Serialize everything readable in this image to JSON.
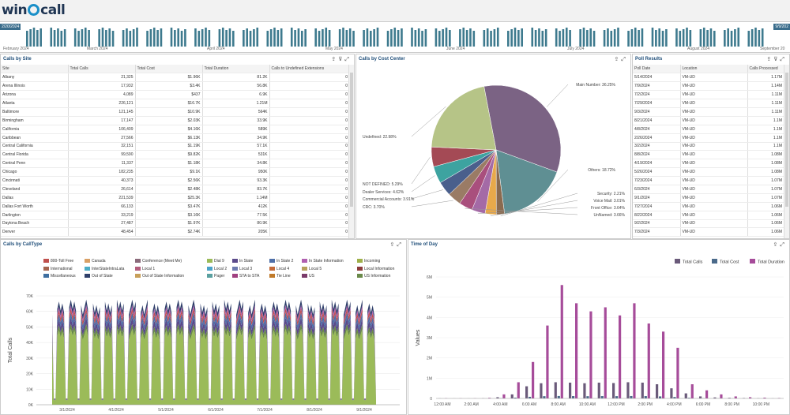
{
  "app": {
    "logo_text": "win",
    "logo_text2": "call"
  },
  "timeline": {
    "start_badge": "2/20/2024",
    "end_badge": "9/9/202",
    "months": [
      "February 2024",
      "March 2024",
      "April 2024",
      "May 2024",
      "June 2024",
      "July 2024",
      "August 2024",
      "September 20"
    ],
    "bar_color": "#3e7a8e"
  },
  "sites": {
    "title": "Calls by Site",
    "columns": [
      "Site",
      "Total Calls",
      "Total Cost",
      "Total Duration",
      "Calls to Undefined Extensions"
    ],
    "rows": [
      [
        "Albany",
        "21,325",
        "$1.96K",
        "81.2K",
        "0"
      ],
      [
        "Arena Illinois",
        "17,932",
        "$3.4K",
        "56.8K",
        "0"
      ],
      [
        "Arizona",
        "4,089",
        "$437",
        "6.9K",
        "0"
      ],
      [
        "Atlanta",
        "226,121",
        "$16.7K",
        "1.21M",
        "0"
      ],
      [
        "Baltimore",
        "121,145",
        "$10.9K",
        "564K",
        "0"
      ],
      [
        "Birmingham",
        "17,147",
        "$2.03K",
        "33.9K",
        "0"
      ],
      [
        "California",
        "106,409",
        "$4.16K",
        "589K",
        "0"
      ],
      [
        "Caribbean",
        "27,566",
        "$6.13K",
        "34.9K",
        "0"
      ],
      [
        "Central California",
        "32,151",
        "$1.19K",
        "57.1K",
        "0"
      ],
      [
        "Central Florida",
        "99,590",
        "$9.82K",
        "531K",
        "0"
      ],
      [
        "Central Penn",
        "11,337",
        "$1.18K",
        "34.8K",
        "0"
      ],
      [
        "Chicago",
        "182,235",
        "$9.1K",
        "950K",
        "0"
      ],
      [
        "Cincinnati",
        "40,373",
        "$2.56K",
        "93.3K",
        "0"
      ],
      [
        "Cleveland",
        "26,614",
        "$2.48K",
        "83.7K",
        "0"
      ],
      [
        "Dallas",
        "221,539",
        "$25.3K",
        "1.14M",
        "0"
      ],
      [
        "Dallas Fort Worth",
        "66,133",
        "$3.47K",
        "412K",
        "0"
      ],
      [
        "Darlington",
        "33,219",
        "$3.16K",
        "77.5K",
        "0"
      ],
      [
        "Daytona Beach",
        "27,487",
        "$1.97K",
        "80.9K",
        "0"
      ],
      [
        "Denver",
        "48,454",
        "$2.74K",
        "205K",
        "0"
      ]
    ]
  },
  "cost_center": {
    "title": "Calls by Cost Center",
    "chart_data": {
      "type": "pie",
      "slices": [
        {
          "label": "Main Number: 36.25%",
          "value": 36.25,
          "color": "#7b6384"
        },
        {
          "label": "Others: 18.72%",
          "value": 18.72,
          "color": "#5f8f93"
        },
        {
          "label": "Security: 2.21%",
          "value": 2.21,
          "color": "#8a6a4f"
        },
        {
          "label": "Voice Mail: 3.01%",
          "value": 3.01,
          "color": "#e8a94b"
        },
        {
          "label": "Front Office: 3.64%",
          "value": 3.64,
          "color": "#a46aa6"
        },
        {
          "label": "UnNamed: 3.66%",
          "value": 3.66,
          "color": "#a94f7d"
        },
        {
          "label": "CRC: 3.70%",
          "value": 3.7,
          "color": "#9a7b65"
        },
        {
          "label": "Commercial Accounts: 3.91%",
          "value": 3.91,
          "color": "#4a5f8c"
        },
        {
          "label": "Dealer Services: 4.62%",
          "value": 4.62,
          "color": "#3da3a0"
        },
        {
          "label": "NOT DEFINED: 5.29%",
          "value": 5.29,
          "color": "#a44a55"
        },
        {
          "label": "Undefined: 22.98%",
          "value": 22.98,
          "color": "#b6c487"
        }
      ]
    }
  },
  "poll": {
    "title": "Poll Results",
    "columns": [
      "Poll Date",
      "Location",
      "Calls Processed"
    ],
    "rows": [
      [
        "5/14/2024",
        "VM-UD",
        "1.17M"
      ],
      [
        "7/9/2024",
        "VM-UD",
        "1.14M"
      ],
      [
        "7/2/2024",
        "VM-UD",
        "1.11M"
      ],
      [
        "7/29/2024",
        "VM-UD",
        "1.11M"
      ],
      [
        "9/3/2024",
        "VM-UD",
        "1.11M"
      ],
      [
        "8/21/2024",
        "VM-UD",
        "1.1M"
      ],
      [
        "4/8/2024",
        "VM-UD",
        "1.1M"
      ],
      [
        "2/26/2024",
        "VM-UD",
        "1.1M"
      ],
      [
        "3/2/2024",
        "VM-UD",
        "1.1M"
      ],
      [
        "8/8/2024",
        "VM-UD",
        "1.08M"
      ],
      [
        "4/19/2024",
        "VM-UD",
        "1.08M"
      ],
      [
        "5/26/2024",
        "VM-UD",
        "1.08M"
      ],
      [
        "7/23/2024",
        "VM-UD",
        "1.07M"
      ],
      [
        "6/3/2024",
        "VM-UD",
        "1.07M"
      ],
      [
        "9/1/2024",
        "VM-UD",
        "1.07M"
      ],
      [
        "7/27/2024",
        "VM-UD",
        "1.06M"
      ],
      [
        "8/22/2024",
        "VM-UD",
        "1.06M"
      ],
      [
        "9/2/2024",
        "VM-UD",
        "1.06M"
      ],
      [
        "7/3/2024",
        "VM-UD",
        "1.06M"
      ]
    ]
  },
  "calltype": {
    "title": "Calls by CallType",
    "chart_data": {
      "type": "area",
      "ylabel": "Total Calls",
      "ylim": [
        0,
        70000
      ],
      "y_ticks": [
        "0K",
        "10K",
        "20K",
        "30K",
        "40K",
        "50K",
        "60K",
        "70K"
      ],
      "x_ticks": [
        "3/1/2024",
        "4/1/2024",
        "5/1/2024",
        "6/1/2024",
        "7/1/2024",
        "8/1/2024",
        "9/1/2024"
      ],
      "legend": [
        {
          "name": "800-Toll Free",
          "color": "#c0504d"
        },
        {
          "name": "Canada",
          "color": "#d9a066"
        },
        {
          "name": "Conference (Meet Me)",
          "color": "#8b6b7b"
        },
        {
          "name": "Dial 9",
          "color": "#9bbb59"
        },
        {
          "name": "In State",
          "color": "#5b4a8a"
        },
        {
          "name": "In State 2",
          "color": "#4f6fa8"
        },
        {
          "name": "In State Information",
          "color": "#b05fb0"
        },
        {
          "name": "Incoming",
          "color": "#9fb04a"
        },
        {
          "name": "International",
          "color": "#a5644e"
        },
        {
          "name": "InterStateIntraLata",
          "color": "#4bacc6"
        },
        {
          "name": "Local 1",
          "color": "#b35d7c"
        },
        {
          "name": "Local 2",
          "color": "#4aa3c9"
        },
        {
          "name": "Local 3",
          "color": "#6e7bb0"
        },
        {
          "name": "Local 4",
          "color": "#c46a3a"
        },
        {
          "name": "Local 5",
          "color": "#b7a15c"
        },
        {
          "name": "Local Information",
          "color": "#8b3a3a"
        },
        {
          "name": "Miscellaneous",
          "color": "#3f6fa0"
        },
        {
          "name": "Out of State",
          "color": "#2f3f6a"
        },
        {
          "name": "Out of State Information",
          "color": "#c8a05a"
        },
        {
          "name": "Pager",
          "color": "#5aa0a0"
        },
        {
          "name": "STA to STA",
          "color": "#a04080"
        },
        {
          "name": "Tie Line",
          "color": "#c07a2a"
        },
        {
          "name": "US",
          "color": "#7a3a6a"
        },
        {
          "name": "US Information",
          "color": "#6a8a4a"
        }
      ]
    }
  },
  "timeofday": {
    "title": "Time of Day",
    "chart_data": {
      "type": "bar",
      "ylabel": "Values",
      "ylim": [
        0,
        6000000
      ],
      "y_ticks": [
        "0",
        "1M",
        "2M",
        "3M",
        "4M",
        "5M",
        "6M"
      ],
      "x_ticks": [
        "12:00 AM",
        "2:00 AM",
        "4:00 AM",
        "6:00 AM",
        "8:00 AM",
        "10:00 AM",
        "12:00 PM",
        "2:00 PM",
        "4:00 PM",
        "6:00 PM",
        "8:00 PM",
        "10:00 PM"
      ],
      "series": [
        {
          "name": "Total Calls",
          "color": "#6a5a7a",
          "values": [
            5000,
            3000,
            3000,
            8000,
            60000,
            200000,
            600000,
            750000,
            800000,
            780000,
            750000,
            780000,
            760000,
            800000,
            780000,
            700000,
            500000,
            250000,
            100000,
            50000,
            30000,
            20000,
            10000,
            5000
          ]
        },
        {
          "name": "Total Cost",
          "color": "#4a6a8a",
          "values": [
            0,
            0,
            0,
            2000,
            10000,
            40000,
            80000,
            110000,
            120000,
            115000,
            110000,
            115000,
            112000,
            118000,
            115000,
            100000,
            70000,
            30000,
            10000,
            5000,
            3000,
            2000,
            1000,
            0
          ]
        },
        {
          "name": "Total Duration",
          "color": "#a64c9a",
          "values": [
            10000,
            8000,
            8000,
            30000,
            200000,
            800000,
            1800000,
            3600000,
            5600000,
            4700000,
            4300000,
            4500000,
            4100000,
            4700000,
            3700000,
            3300000,
            2500000,
            700000,
            400000,
            200000,
            100000,
            60000,
            40000,
            20000
          ]
        }
      ]
    }
  }
}
